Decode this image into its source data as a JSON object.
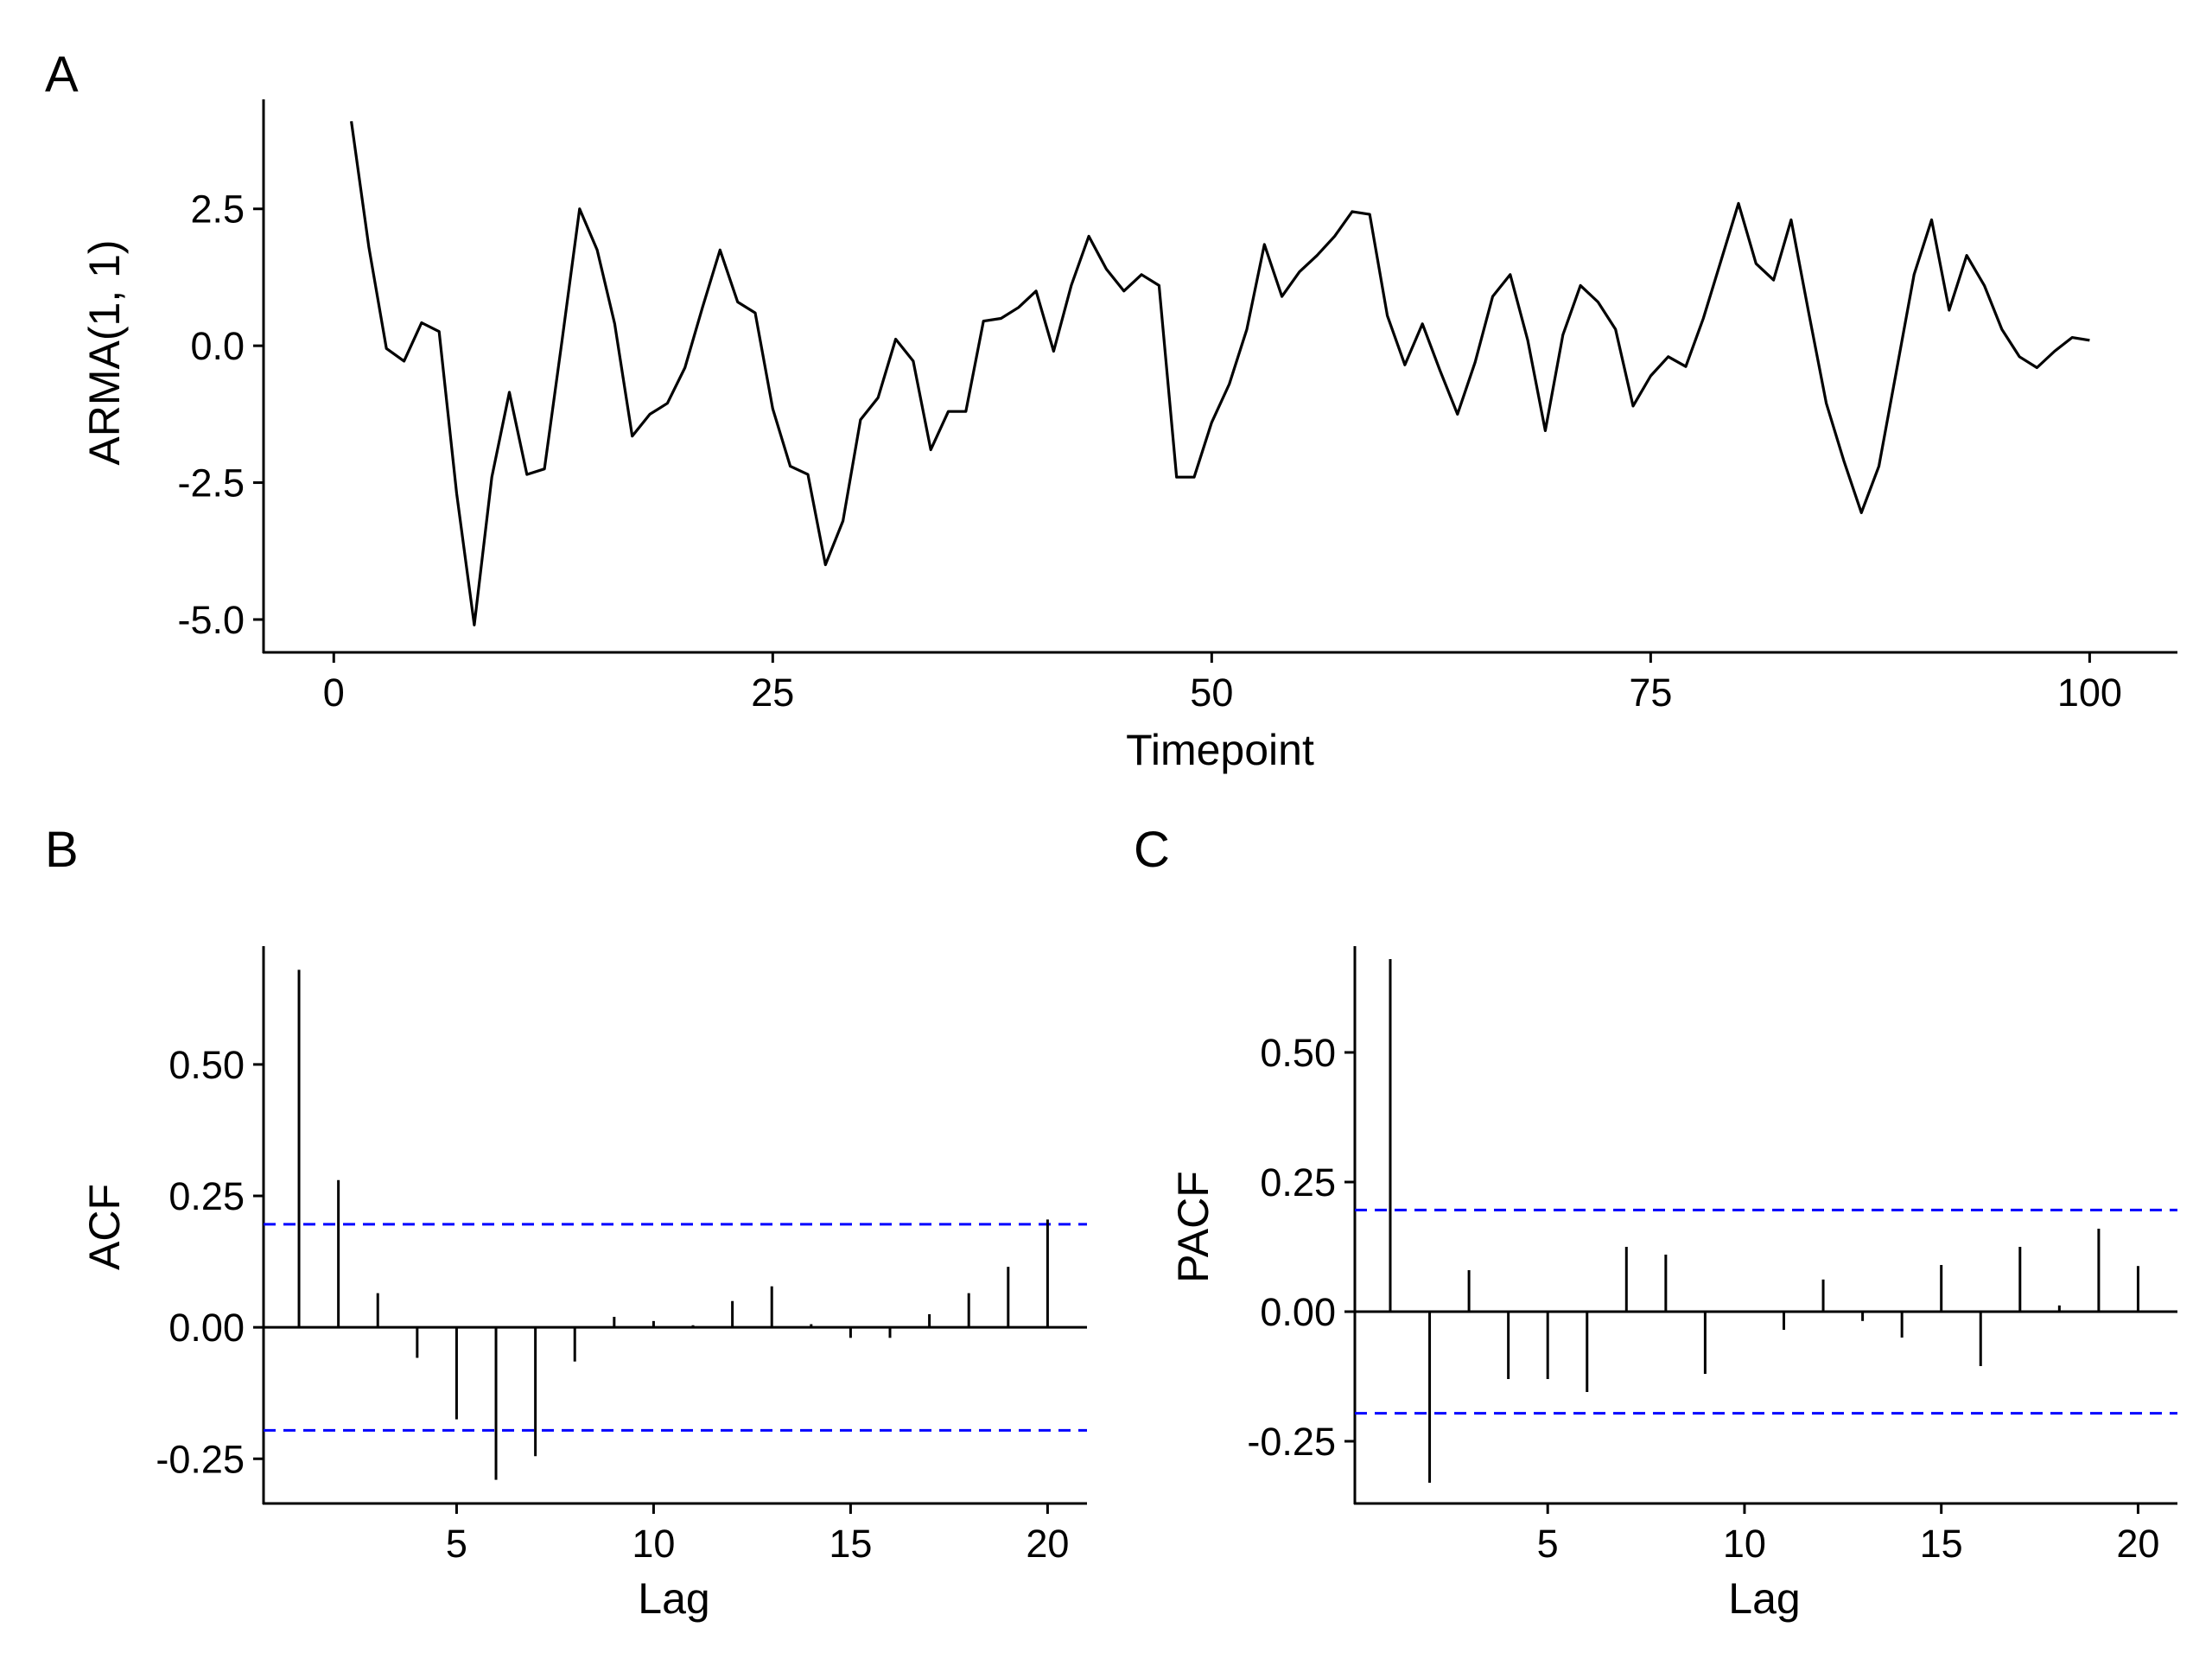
{
  "colors": {
    "line": "#000000",
    "axis": "#000000",
    "confidence_band": "#0000ff",
    "background": "#ffffff"
  },
  "chart_data": [
    {
      "panel": "A",
      "type": "line",
      "xlabel": "Timepoint",
      "ylabel": "ARMA(1, 1)",
      "xlim": [
        -4,
        105
      ],
      "ylim": [
        -5.6,
        4.5
      ],
      "xticks": [
        0,
        25,
        50,
        75,
        100
      ],
      "xtick_labels": [
        "0",
        "25",
        "50",
        "75",
        "100"
      ],
      "yticks": [
        -5.0,
        -2.5,
        0.0,
        2.5
      ],
      "ytick_labels": [
        "-5.0",
        "-2.5",
        "0.0",
        "2.5"
      ],
      "grid": false,
      "series": [
        {
          "name": "ARMA(1, 1)",
          "x": [
            1,
            2,
            3,
            4,
            5,
            6,
            7,
            8,
            9,
            10,
            11,
            12,
            13,
            14,
            15,
            16,
            17,
            18,
            19,
            20,
            21,
            22,
            23,
            24,
            25,
            26,
            27,
            28,
            29,
            30,
            31,
            32,
            33,
            34,
            35,
            36,
            37,
            38,
            39,
            40,
            41,
            42,
            43,
            44,
            45,
            46,
            47,
            48,
            49,
            50,
            51,
            52,
            53,
            54,
            55,
            56,
            57,
            58,
            59,
            60,
            61,
            62,
            63,
            64,
            65,
            66,
            67,
            68,
            69,
            70,
            71,
            72,
            73,
            74,
            75,
            76,
            77,
            78,
            79,
            80,
            81,
            82,
            83,
            84,
            85,
            86,
            87,
            88,
            89,
            90,
            91,
            92,
            93,
            94,
            95,
            96,
            97,
            98,
            99,
            100
          ],
          "values": [
            4.1,
            1.8,
            -0.05,
            -0.28,
            0.42,
            0.26,
            -2.7,
            -5.1,
            -2.4,
            -0.85,
            -2.35,
            -2.25,
            0.1,
            2.5,
            1.75,
            0.4,
            -1.65,
            -1.25,
            -1.05,
            -0.4,
            0.7,
            1.75,
            0.8,
            0.6,
            -1.15,
            -2.2,
            -2.35,
            -4.0,
            -3.2,
            -1.35,
            -0.95,
            0.12,
            -0.28,
            -1.9,
            -1.2,
            -1.2,
            0.45,
            0.5,
            0.7,
            1.0,
            -0.1,
            1.1,
            2.0,
            1.4,
            1.0,
            1.3,
            1.1,
            -2.4,
            -2.4,
            -1.4,
            -0.7,
            0.3,
            1.85,
            0.9,
            1.35,
            1.65,
            2.0,
            2.45,
            2.4,
            0.55,
            -0.35,
            0.4,
            -0.45,
            -1.25,
            -0.3,
            0.9,
            1.3,
            0.1,
            -1.55,
            0.2,
            1.1,
            0.8,
            0.3,
            -1.1,
            -0.55,
            -0.2,
            -0.38,
            0.5,
            1.55,
            2.6,
            1.5,
            1.2,
            2.3,
            0.6,
            -1.05,
            -2.1,
            -3.05,
            -2.2,
            -0.45,
            1.3,
            2.3,
            0.65,
            1.65,
            1.1,
            0.3,
            -0.2,
            -0.4,
            -0.1,
            0.15,
            0.1
          ]
        }
      ]
    },
    {
      "panel": "B",
      "type": "bar",
      "xlabel": "Lag",
      "ylabel": "ACF",
      "xlim": [
        0.1,
        21.0
      ],
      "ylim": [
        -0.335,
        0.725
      ],
      "xticks": [
        5,
        10,
        15,
        20
      ],
      "xtick_labels": [
        "5",
        "10",
        "15",
        "20"
      ],
      "yticks": [
        -0.25,
        0.0,
        0.25,
        0.5
      ],
      "ytick_labels": [
        "-0.25",
        "0.00",
        "0.25",
        "0.50"
      ],
      "confidence_limits": [
        0.196,
        -0.196
      ],
      "grid": false,
      "categories": [
        1,
        2,
        3,
        4,
        5,
        6,
        7,
        8,
        9,
        10,
        11,
        12,
        13,
        14,
        15,
        16,
        17,
        18,
        19,
        20
      ],
      "values": [
        0.68,
        0.28,
        0.065,
        -0.058,
        -0.175,
        -0.29,
        -0.245,
        -0.065,
        0.02,
        0.012,
        0.004,
        0.05,
        0.078,
        0.006,
        -0.02,
        -0.02,
        0.025,
        0.065,
        0.115,
        0.205
      ]
    },
    {
      "panel": "C",
      "type": "bar",
      "xlabel": "Lag",
      "ylabel": "PACF",
      "xlim": [
        0.1,
        21.0
      ],
      "ylim": [
        -0.37,
        0.705
      ],
      "xticks": [
        5,
        10,
        15,
        20
      ],
      "xtick_labels": [
        "5",
        "10",
        "15",
        "20"
      ],
      "yticks": [
        -0.25,
        0.0,
        0.25,
        0.5
      ],
      "ytick_labels": [
        "-0.25",
        "0.00",
        "0.25",
        "0.50"
      ],
      "confidence_limits": [
        0.196,
        -0.196
      ],
      "grid": false,
      "categories": [
        1,
        2,
        3,
        4,
        5,
        6,
        7,
        8,
        9,
        10,
        11,
        12,
        13,
        14,
        15,
        16,
        17,
        18,
        19,
        20
      ],
      "values": [
        0.68,
        -0.33,
        0.08,
        -0.13,
        -0.13,
        -0.155,
        0.125,
        0.11,
        -0.12,
        0.0,
        -0.035,
        0.062,
        -0.018,
        -0.05,
        0.09,
        -0.105,
        0.125,
        0.012,
        0.16,
        0.088
      ]
    }
  ]
}
